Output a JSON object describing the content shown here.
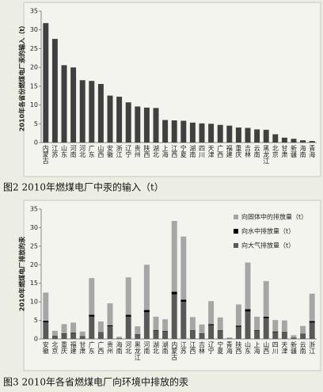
{
  "chart_data": [
    {
      "type": "bar",
      "caption": "图2 2010年燃煤电厂中汞的输入（t）",
      "ylabel": "2010年各省份燃煤电厂汞的输入（t）",
      "categories": [
        "内蒙古",
        "江苏",
        "山东",
        "河南",
        "河北",
        "广东",
        "山西",
        "安徽",
        "浙江",
        "辽宁",
        "贵州",
        "陕西",
        "湖北",
        "上海",
        "江西",
        "宁夏",
        "湖南",
        "四川",
        "天津",
        "广西",
        "福建",
        "重庆",
        "吉林",
        "云南",
        "黑龙江",
        "北京",
        "甘肃",
        "新疆",
        "海南",
        "青海"
      ],
      "values": [
        31.8,
        27.6,
        20.6,
        20.0,
        16.6,
        16.4,
        15.6,
        12.5,
        12.2,
        10.7,
        9.6,
        9.3,
        9.2,
        6.0,
        5.9,
        5.8,
        5.3,
        5.1,
        5.0,
        4.7,
        4.5,
        4.0,
        3.9,
        3.5,
        3.4,
        2.2,
        1.3,
        1.0,
        0.6,
        0.4
      ],
      "color": "#404040",
      "ylim": [
        0,
        35
      ],
      "yticks": [
        0,
        5,
        10,
        15,
        20,
        25,
        30,
        35
      ],
      "grid": false
    },
    {
      "type": "stacked_bar",
      "caption": "图3 2010年各省燃煤电厂向环境中排放的汞",
      "ylabel": "2010年燃煤电厂排放的汞",
      "categories": [
        "安徽",
        "北京",
        "重庆",
        "福建",
        "甘肃",
        "广东",
        "广西",
        "贵州",
        "海南",
        "河北",
        "黑龙江",
        "河南",
        "湖北",
        "湖南",
        "内蒙古",
        "江苏",
        "江西",
        "吉林",
        "辽宁",
        "宁夏",
        "青海",
        "陕西",
        "山东",
        "上海",
        "山西",
        "四川",
        "天津",
        "新疆",
        "云南",
        "浙江"
      ],
      "series": [
        {
          "name": "向固体中的排放量（t）",
          "color": "#a6a6a6",
          "values": [
            7.6,
            1.3,
            2.5,
            2.7,
            1.2,
            9.9,
            2.9,
            5.9,
            0.4,
            10.1,
            2.1,
            12.2,
            3.6,
            3.2,
            19.1,
            17.0,
            3.6,
            2.4,
            6.2,
            3.5,
            0.3,
            5.7,
            12.6,
            3.6,
            9.6,
            3.1,
            3.1,
            0.6,
            2.1,
            7.4
          ]
        },
        {
          "name": "向水中排放量（t）",
          "color": "#000000",
          "values": [
            0.4,
            0.1,
            0.1,
            0.1,
            0.1,
            0.5,
            0.1,
            0.3,
            0.0,
            0.5,
            0.1,
            0.6,
            0.2,
            0.2,
            0.7,
            0.6,
            0.2,
            0.1,
            0.3,
            0.2,
            0.0,
            0.3,
            0.6,
            0.2,
            0.4,
            0.2,
            0.1,
            0.0,
            0.1,
            0.4
          ]
        },
        {
          "name": "向大气排放量（t）",
          "color": "#595959",
          "values": [
            4.5,
            0.8,
            1.4,
            1.6,
            0.7,
            6.0,
            1.7,
            3.4,
            0.2,
            6.0,
            1.2,
            7.2,
            2.2,
            1.9,
            12.0,
            10.0,
            2.1,
            1.4,
            3.7,
            2.1,
            0.1,
            3.3,
            7.4,
            2.2,
            5.6,
            1.8,
            1.8,
            0.4,
            1.3,
            4.4
          ]
        }
      ],
      "ylim": [
        0,
        35
      ],
      "yticks": [
        0,
        5,
        10,
        15,
        20,
        25,
        30,
        35
      ],
      "grid": false,
      "legend": "top-right"
    }
  ]
}
